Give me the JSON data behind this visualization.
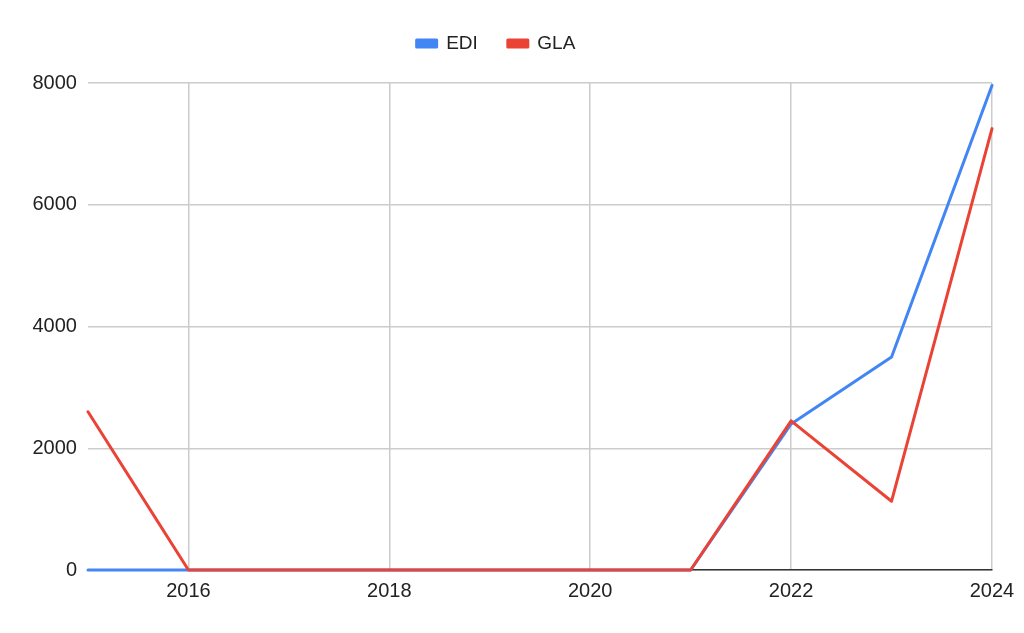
{
  "chart_data": {
    "type": "line",
    "x": [
      2015,
      2016,
      2017,
      2018,
      2019,
      2020,
      2021,
      2022,
      2023,
      2024
    ],
    "series": [
      {
        "name": "EDI",
        "color": "#4285f4",
        "values": [
          0,
          0,
          0,
          0,
          0,
          0,
          0,
          2400,
          3500,
          7960
        ]
      },
      {
        "name": "GLA",
        "color": "#ea4335",
        "values": [
          2600,
          0,
          0,
          0,
          0,
          0,
          0,
          2450,
          1130,
          7250
        ]
      }
    ],
    "xlim": [
      2015,
      2024
    ],
    "xticks": [
      2016,
      2018,
      2020,
      2022,
      2024
    ],
    "ylim": [
      0,
      8000
    ],
    "yticks": [
      0,
      2000,
      4000,
      6000,
      8000
    ],
    "grid": true,
    "legend": "top",
    "marker": "none"
  }
}
